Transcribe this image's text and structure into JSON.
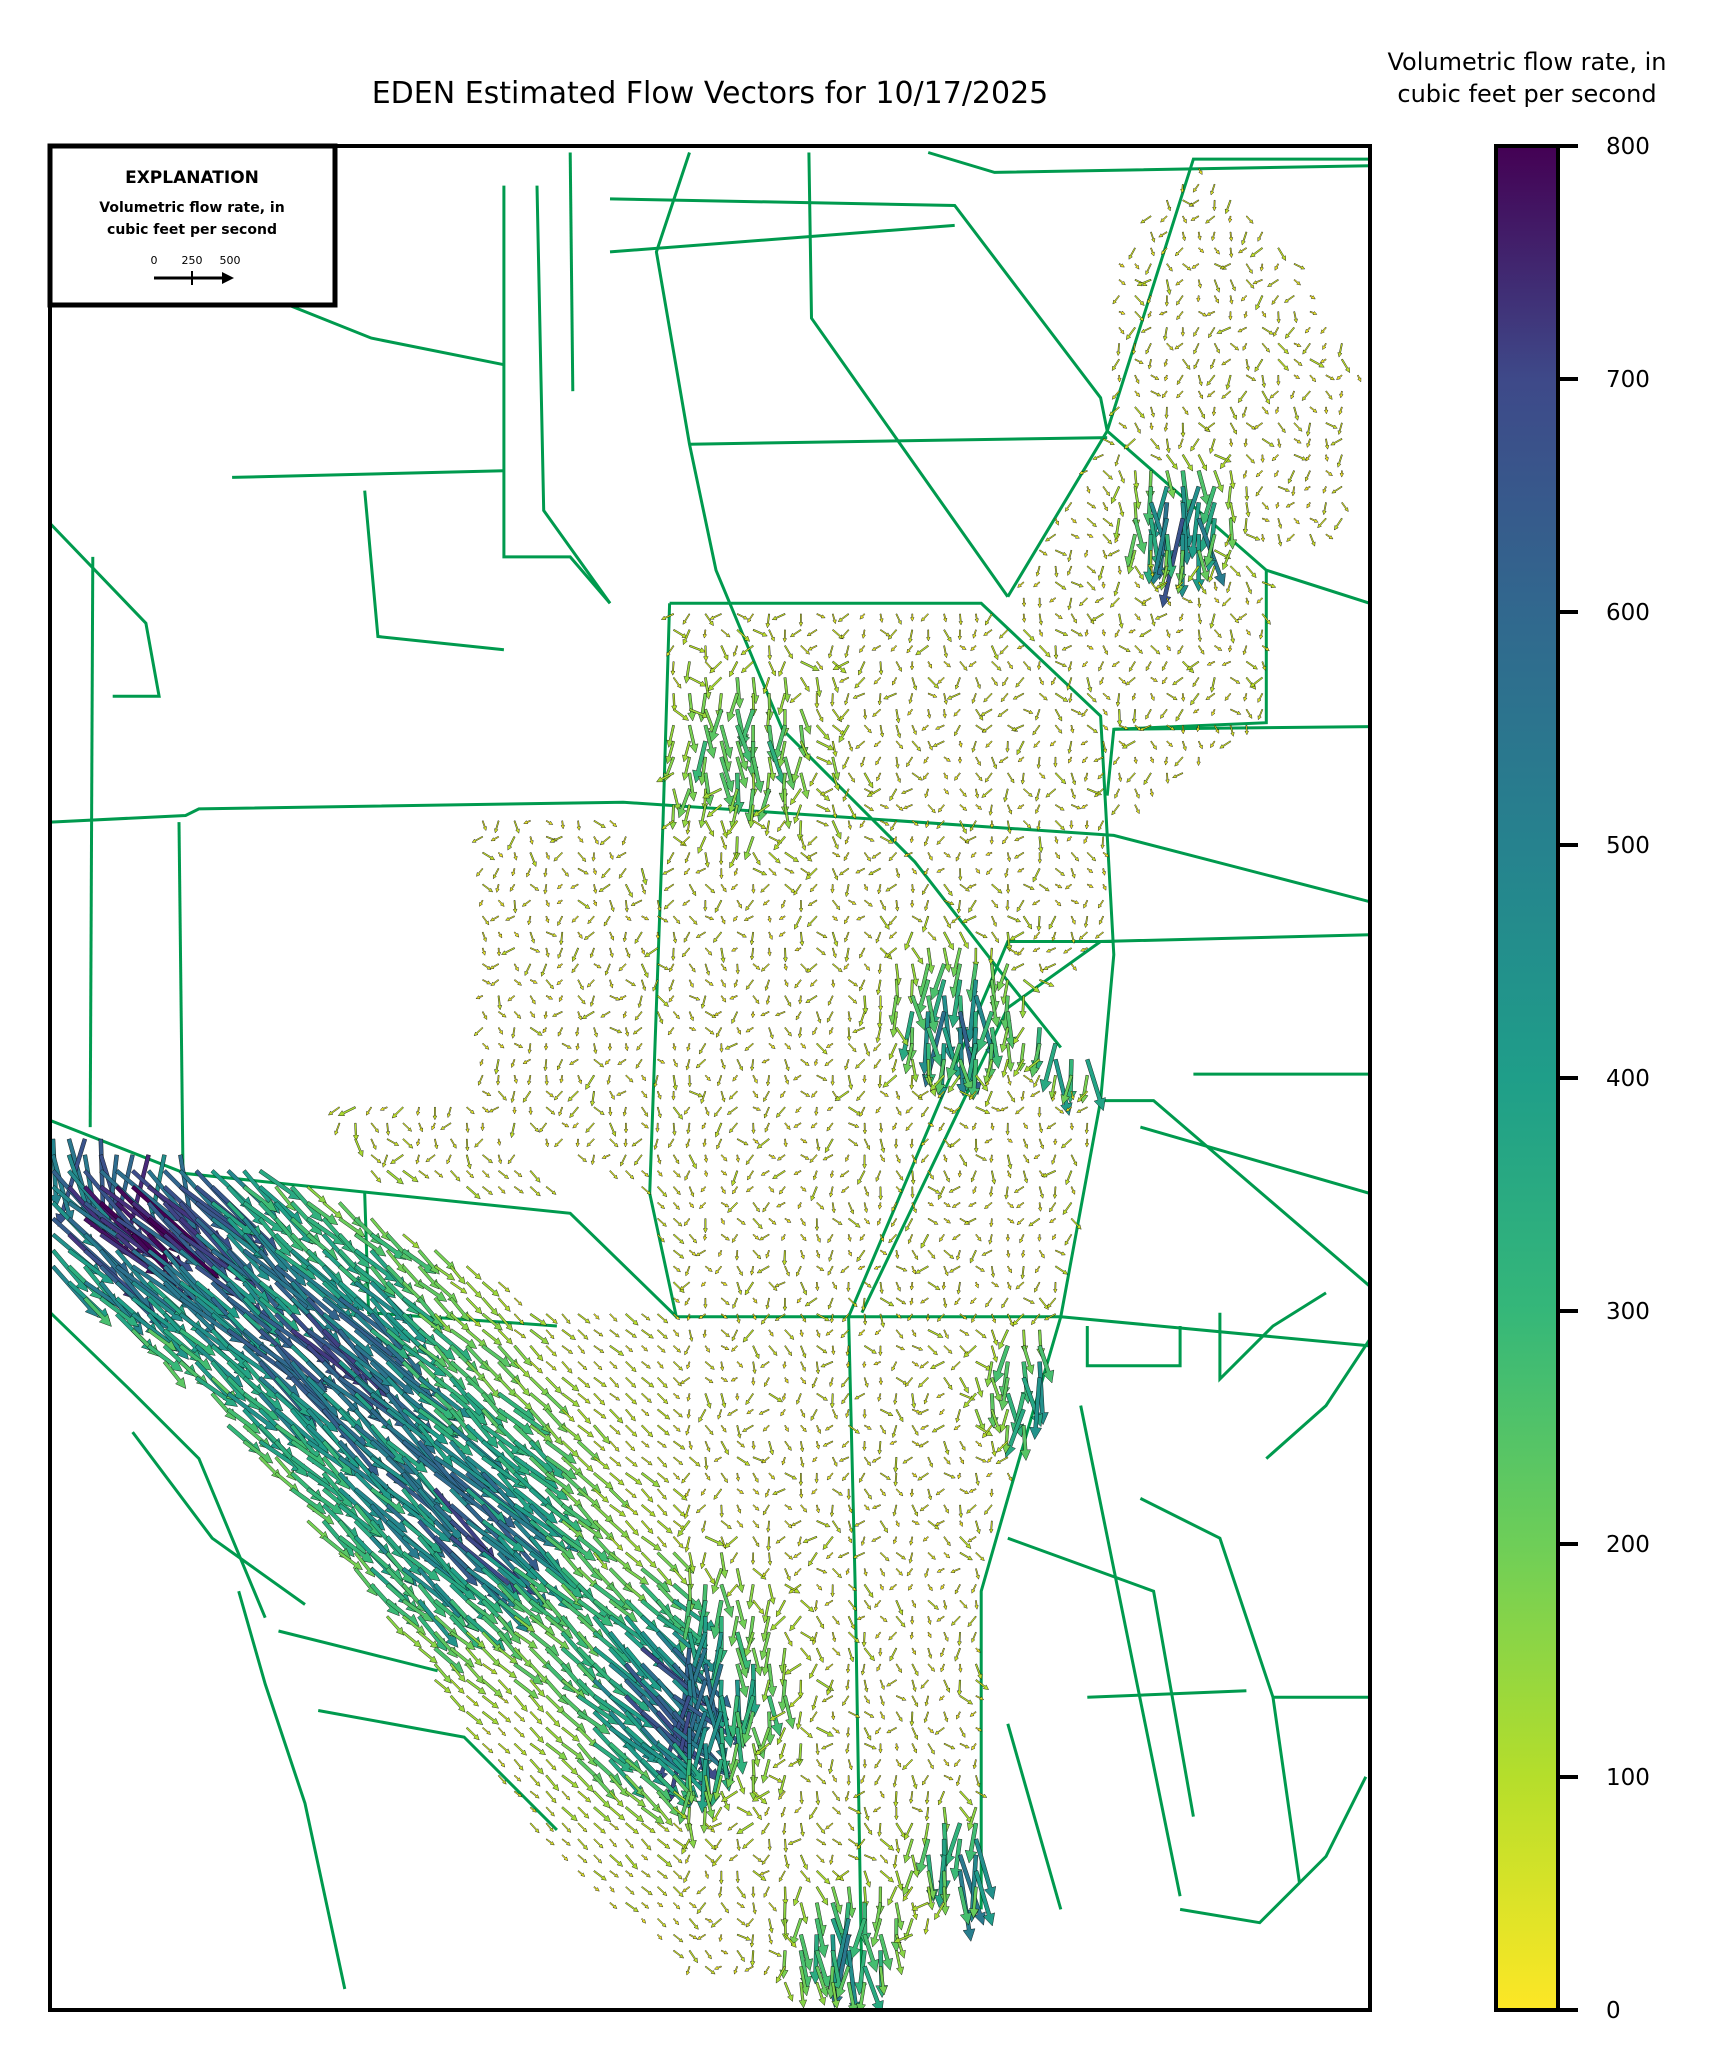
{
  "chart_data": {
    "type": "quiver",
    "title": "EDEN Estimated Flow Vectors for 10/17/2025",
    "colorbar": {
      "label_line1": "Volumetric flow rate, in",
      "label_line2": "cubic feet per second",
      "range": [
        0,
        800
      ],
      "ticks": [
        "0",
        "100",
        "200",
        "300",
        "400",
        "500",
        "600",
        "700",
        "800"
      ],
      "colormap": "viridis_r"
    },
    "explanation": {
      "heading": "EXPLANATION",
      "line1": "Volumetric flow rate, in",
      "line2": "cubic feet per second",
      "scale_ticks": [
        "0",
        "250",
        "500"
      ]
    },
    "colors": {
      "canal_lines": "#009a4e",
      "frame": "#000000",
      "colormap_low": "#fde725",
      "colormap_high": "#440154"
    }
  }
}
